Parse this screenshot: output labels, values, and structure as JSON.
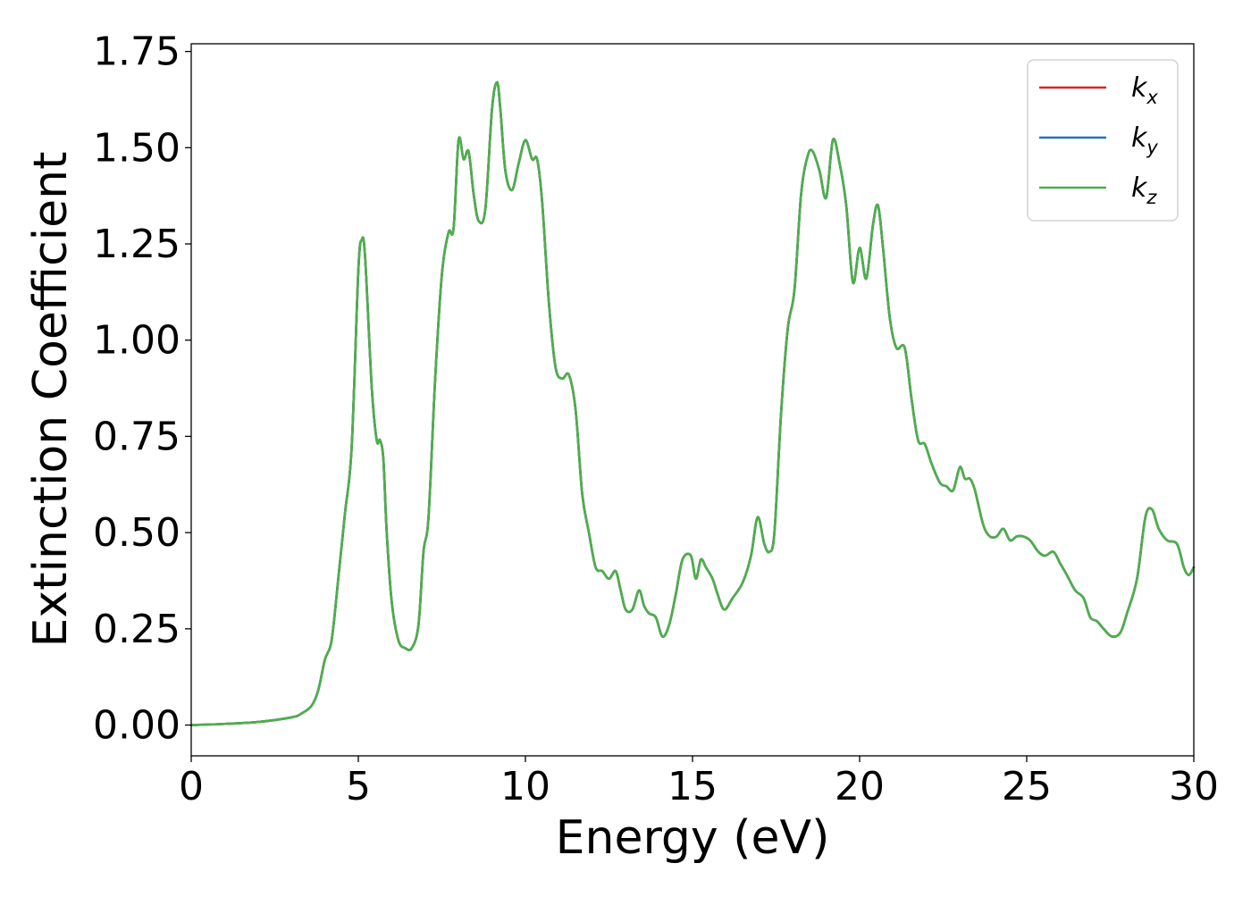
{
  "chart_data": {
    "type": "line",
    "xlabel": "Energy (eV)",
    "ylabel": "Extinction Coefficient",
    "xlim": [
      0,
      30
    ],
    "ylim": [
      -0.08,
      1.77
    ],
    "xticks": [
      0,
      5,
      10,
      15,
      20,
      25,
      30
    ],
    "xtick_labels": [
      "0",
      "5",
      "10",
      "15",
      "20",
      "25",
      "30"
    ],
    "yticks": [
      0.0,
      0.25,
      0.5,
      0.75,
      1.0,
      1.25,
      1.5,
      1.75
    ],
    "ytick_labels": [
      "0.00",
      "0.25",
      "0.50",
      "0.75",
      "1.00",
      "1.25",
      "1.50",
      "1.75"
    ],
    "grid": false,
    "legend": {
      "position": "top-right",
      "entries": [
        {
          "base": "k",
          "sub": "x",
          "color": "#d62728"
        },
        {
          "base": "k",
          "sub": "y",
          "color": "#1f77b4"
        },
        {
          "base": "k",
          "sub": "z",
          "color": "#4daf4a"
        }
      ]
    },
    "x": [
      0,
      1,
      2,
      3,
      3.3,
      3.6,
      3.8,
      4.0,
      4.2,
      4.4,
      4.6,
      4.8,
      5.0,
      5.1,
      5.2,
      5.4,
      5.55,
      5.65,
      5.75,
      5.85,
      6.0,
      6.2,
      6.4,
      6.6,
      6.8,
      6.95,
      7.1,
      7.3,
      7.5,
      7.7,
      7.85,
      8.0,
      8.15,
      8.3,
      8.45,
      8.6,
      8.8,
      9.0,
      9.15,
      9.25,
      9.4,
      9.6,
      9.8,
      10.0,
      10.2,
      10.35,
      10.5,
      10.7,
      10.9,
      11.1,
      11.3,
      11.5,
      11.7,
      11.9,
      12.1,
      12.3,
      12.5,
      12.7,
      12.85,
      13.0,
      13.2,
      13.4,
      13.55,
      13.7,
      13.9,
      14.1,
      14.3,
      14.5,
      14.7,
      14.95,
      15.1,
      15.25,
      15.4,
      15.6,
      15.75,
      15.95,
      16.2,
      16.5,
      16.75,
      16.95,
      17.15,
      17.3,
      17.45,
      17.65,
      17.85,
      18.05,
      18.25,
      18.45,
      18.6,
      18.8,
      19.0,
      19.2,
      19.4,
      19.6,
      19.8,
      20.0,
      20.2,
      20.4,
      20.55,
      20.7,
      20.9,
      21.1,
      21.35,
      21.55,
      21.75,
      21.95,
      22.15,
      22.4,
      22.6,
      22.8,
      23.0,
      23.15,
      23.3,
      23.45,
      23.7,
      23.9,
      24.1,
      24.3,
      24.5,
      24.7,
      24.9,
      25.1,
      25.35,
      25.55,
      25.8,
      26.0,
      26.2,
      26.45,
      26.7,
      26.9,
      27.1,
      27.3,
      27.55,
      27.8,
      28.0,
      28.3,
      28.55,
      28.75,
      28.95,
      29.2,
      29.5,
      29.7,
      29.85,
      30.0
    ],
    "series": [
      {
        "color": "#d62728",
        "values": [
          0.0,
          0.003,
          0.008,
          0.02,
          0.03,
          0.05,
          0.09,
          0.17,
          0.22,
          0.38,
          0.55,
          0.72,
          1.18,
          1.26,
          1.22,
          0.88,
          0.74,
          0.74,
          0.69,
          0.5,
          0.32,
          0.22,
          0.2,
          0.2,
          0.26,
          0.45,
          0.54,
          0.9,
          1.17,
          1.28,
          1.29,
          1.52,
          1.47,
          1.49,
          1.38,
          1.31,
          1.34,
          1.6,
          1.67,
          1.6,
          1.44,
          1.39,
          1.46,
          1.52,
          1.47,
          1.47,
          1.36,
          1.1,
          0.93,
          0.9,
          0.91,
          0.82,
          0.6,
          0.5,
          0.41,
          0.4,
          0.38,
          0.4,
          0.35,
          0.3,
          0.3,
          0.35,
          0.31,
          0.29,
          0.28,
          0.23,
          0.26,
          0.34,
          0.43,
          0.44,
          0.38,
          0.43,
          0.41,
          0.38,
          0.34,
          0.3,
          0.33,
          0.37,
          0.44,
          0.54,
          0.47,
          0.45,
          0.5,
          0.81,
          1.03,
          1.13,
          1.38,
          1.48,
          1.49,
          1.44,
          1.37,
          1.52,
          1.46,
          1.35,
          1.15,
          1.24,
          1.16,
          1.3,
          1.35,
          1.24,
          1.06,
          0.98,
          0.98,
          0.85,
          0.74,
          0.73,
          0.68,
          0.63,
          0.62,
          0.61,
          0.67,
          0.64,
          0.64,
          0.61,
          0.52,
          0.49,
          0.49,
          0.51,
          0.48,
          0.49,
          0.49,
          0.48,
          0.45,
          0.44,
          0.45,
          0.42,
          0.39,
          0.35,
          0.33,
          0.28,
          0.27,
          0.25,
          0.23,
          0.24,
          0.29,
          0.38,
          0.54,
          0.56,
          0.51,
          0.48,
          0.47,
          0.41,
          0.39,
          0.41
        ]
      },
      {
        "color": "#1f77b4",
        "values": [
          0.0,
          0.003,
          0.008,
          0.02,
          0.03,
          0.05,
          0.09,
          0.17,
          0.22,
          0.38,
          0.55,
          0.72,
          1.18,
          1.26,
          1.22,
          0.88,
          0.74,
          0.74,
          0.69,
          0.5,
          0.32,
          0.22,
          0.2,
          0.2,
          0.26,
          0.45,
          0.54,
          0.9,
          1.17,
          1.28,
          1.29,
          1.52,
          1.47,
          1.49,
          1.38,
          1.31,
          1.34,
          1.6,
          1.67,
          1.6,
          1.44,
          1.39,
          1.46,
          1.52,
          1.47,
          1.47,
          1.36,
          1.1,
          0.93,
          0.9,
          0.91,
          0.82,
          0.6,
          0.5,
          0.41,
          0.4,
          0.38,
          0.4,
          0.35,
          0.3,
          0.3,
          0.35,
          0.31,
          0.29,
          0.28,
          0.23,
          0.26,
          0.34,
          0.43,
          0.44,
          0.38,
          0.43,
          0.41,
          0.38,
          0.34,
          0.3,
          0.33,
          0.37,
          0.44,
          0.54,
          0.47,
          0.45,
          0.5,
          0.81,
          1.03,
          1.13,
          1.38,
          1.48,
          1.49,
          1.44,
          1.37,
          1.52,
          1.46,
          1.35,
          1.15,
          1.24,
          1.16,
          1.3,
          1.35,
          1.24,
          1.06,
          0.98,
          0.98,
          0.85,
          0.74,
          0.73,
          0.68,
          0.63,
          0.62,
          0.61,
          0.67,
          0.64,
          0.64,
          0.61,
          0.52,
          0.49,
          0.49,
          0.51,
          0.48,
          0.49,
          0.49,
          0.48,
          0.45,
          0.44,
          0.45,
          0.42,
          0.39,
          0.35,
          0.33,
          0.28,
          0.27,
          0.25,
          0.23,
          0.24,
          0.29,
          0.38,
          0.54,
          0.56,
          0.51,
          0.48,
          0.47,
          0.41,
          0.39,
          0.41
        ]
      },
      {
        "color": "#4daf4a",
        "values": [
          0.0,
          0.003,
          0.008,
          0.02,
          0.03,
          0.05,
          0.09,
          0.17,
          0.22,
          0.38,
          0.55,
          0.72,
          1.18,
          1.26,
          1.22,
          0.88,
          0.74,
          0.74,
          0.69,
          0.5,
          0.32,
          0.22,
          0.2,
          0.2,
          0.26,
          0.45,
          0.54,
          0.9,
          1.17,
          1.28,
          1.29,
          1.52,
          1.47,
          1.49,
          1.38,
          1.31,
          1.34,
          1.6,
          1.67,
          1.6,
          1.44,
          1.39,
          1.46,
          1.52,
          1.47,
          1.47,
          1.36,
          1.1,
          0.93,
          0.9,
          0.91,
          0.82,
          0.6,
          0.5,
          0.41,
          0.4,
          0.38,
          0.4,
          0.35,
          0.3,
          0.3,
          0.35,
          0.31,
          0.29,
          0.28,
          0.23,
          0.26,
          0.34,
          0.43,
          0.44,
          0.38,
          0.43,
          0.41,
          0.38,
          0.34,
          0.3,
          0.33,
          0.37,
          0.44,
          0.54,
          0.47,
          0.45,
          0.5,
          0.81,
          1.03,
          1.13,
          1.38,
          1.48,
          1.49,
          1.44,
          1.37,
          1.52,
          1.46,
          1.35,
          1.15,
          1.24,
          1.16,
          1.3,
          1.35,
          1.24,
          1.06,
          0.98,
          0.98,
          0.85,
          0.74,
          0.73,
          0.68,
          0.63,
          0.62,
          0.61,
          0.67,
          0.64,
          0.64,
          0.61,
          0.52,
          0.49,
          0.49,
          0.51,
          0.48,
          0.49,
          0.49,
          0.48,
          0.45,
          0.44,
          0.45,
          0.42,
          0.39,
          0.35,
          0.33,
          0.28,
          0.27,
          0.25,
          0.23,
          0.24,
          0.29,
          0.38,
          0.54,
          0.56,
          0.51,
          0.48,
          0.47,
          0.41,
          0.39,
          0.41
        ]
      }
    ]
  }
}
